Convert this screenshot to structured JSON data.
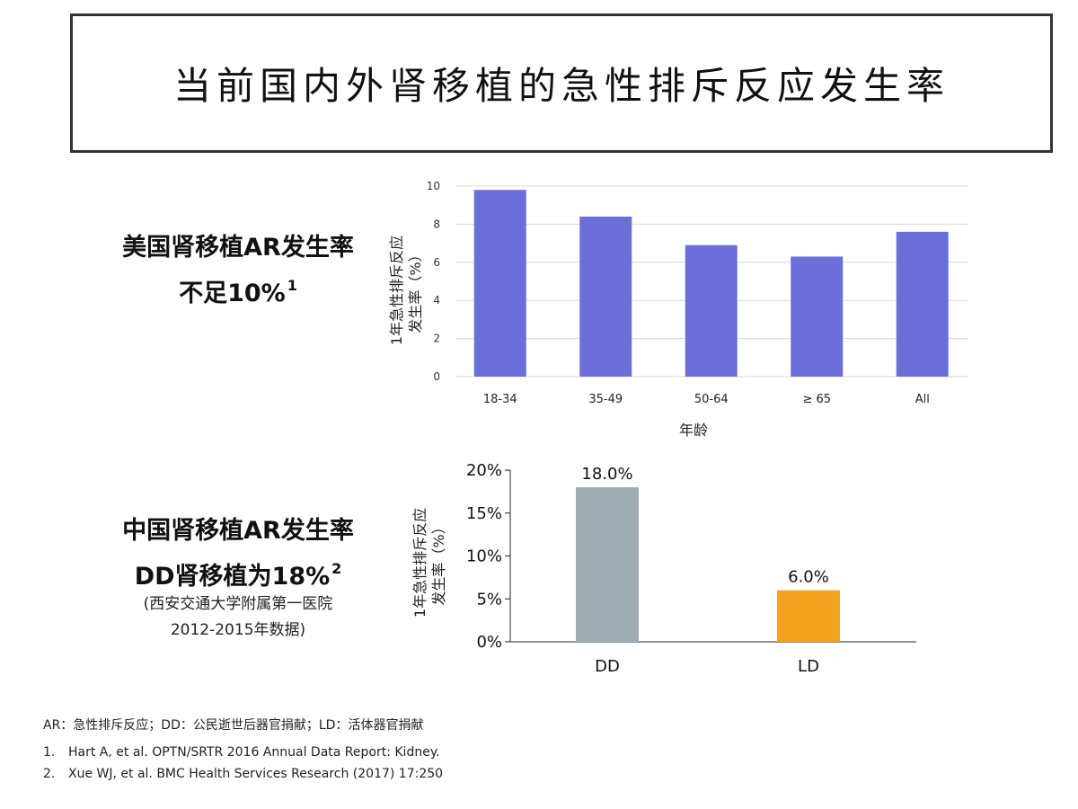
{
  "title": "当前国内外肾移植的急性排斥反应发生率",
  "us_block": {
    "line1": "美国肾移植AR发生率",
    "line2": "不足10%",
    "ref": "1"
  },
  "cn_block": {
    "line1": "中国肾移植AR发生率",
    "line2": "DD肾移植为18%",
    "ref": "2",
    "note1": "(西安交通大学附属第一医院",
    "note2": "2012-2015年数据)"
  },
  "chart_data": [
    {
      "type": "bar",
      "categories": [
        "18-34",
        "35-49",
        "50-64",
        "≥ 65",
        "All"
      ],
      "values": [
        9.8,
        8.4,
        6.9,
        6.3,
        7.6
      ],
      "ylabel_line1": "1年急性排斥反应",
      "ylabel_line2": "发生率（%）",
      "xlabel": "年龄",
      "ylim": [
        0,
        10
      ],
      "yticks": [
        "0",
        "2",
        "4",
        "6",
        "8",
        "10"
      ],
      "grid": true,
      "color": "#6d6fd8"
    },
    {
      "type": "bar",
      "categories": [
        "DD",
        "LD"
      ],
      "values": [
        18.0,
        6.0
      ],
      "data_labels": [
        "18.0%",
        "6.0%"
      ],
      "ylabel_line1": "1年急性排斥反应",
      "ylabel_line2": "发生率（%）",
      "ylim": [
        0,
        20
      ],
      "yticks": [
        "0%",
        "5%",
        "10%",
        "15%",
        "20%"
      ],
      "grid": false,
      "colors": [
        "#9eadb2",
        "#f3a31e"
      ]
    }
  ],
  "footer": {
    "abbreviations": "AR：急性排斥反应；DD：公民逝世后器官捐献；LD：活体器官捐献",
    "refs": [
      {
        "num": "1.",
        "text": "Hart A, et al. OPTN/SRTR 2016 Annual Data Report: Kidney."
      },
      {
        "num": "2.",
        "text": "Xue WJ, et al. BMC Health Services Research (2017) 17:250"
      }
    ]
  }
}
